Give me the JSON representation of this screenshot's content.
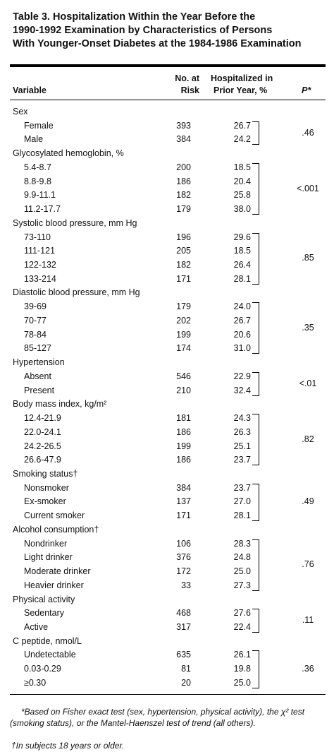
{
  "title_lines": [
    "Table 3. Hospitalization Within the Year Before the",
    "1990-1992 Examination by Characteristics of Persons",
    "With Younger-Onset Diabetes at the 1984-1986 Examination"
  ],
  "table": {
    "headers": {
      "variable": "Variable",
      "n": [
        "No. at",
        "Risk"
      ],
      "pct": [
        "Hospitalized in",
        "Prior Year, %"
      ],
      "p": "P*"
    },
    "groups": [
      {
        "label": "Sex",
        "p": ".46",
        "rows": [
          {
            "label": "Female",
            "n": "393",
            "pct": "26.7"
          },
          {
            "label": "Male",
            "n": "384",
            "pct": "24.2"
          }
        ]
      },
      {
        "label": "Glycosylated hemoglobin, %",
        "p": "<.001",
        "rows": [
          {
            "label": "5.4-8.7",
            "n": "200",
            "pct": "18.5"
          },
          {
            "label": "8.8-9.8",
            "n": "186",
            "pct": "20.4"
          },
          {
            "label": "9.9-11.1",
            "n": "182",
            "pct": "25.8"
          },
          {
            "label": "11.2-17.7",
            "n": "179",
            "pct": "38.0"
          }
        ]
      },
      {
        "label": "Systolic blood pressure, mm Hg",
        "p": ".85",
        "rows": [
          {
            "label": "73-110",
            "n": "196",
            "pct": "29.6"
          },
          {
            "label": "111-121",
            "n": "205",
            "pct": "18.5"
          },
          {
            "label": "122-132",
            "n": "182",
            "pct": "26.4"
          },
          {
            "label": "133-214",
            "n": "171",
            "pct": "28.1"
          }
        ]
      },
      {
        "label": "Diastolic blood pressure, mm Hg",
        "p": ".35",
        "rows": [
          {
            "label": "39-69",
            "n": "179",
            "pct": "24.0"
          },
          {
            "label": "70-77",
            "n": "202",
            "pct": "26.7"
          },
          {
            "label": "78-84",
            "n": "199",
            "pct": "20.6"
          },
          {
            "label": "85-127",
            "n": "174",
            "pct": "31.0"
          }
        ]
      },
      {
        "label": "Hypertension",
        "p": "<.01",
        "rows": [
          {
            "label": "Absent",
            "n": "546",
            "pct": "22.9"
          },
          {
            "label": "Present",
            "n": "210",
            "pct": "32.4"
          }
        ]
      },
      {
        "label": "Body mass index, kg/m²",
        "p": ".82",
        "rows": [
          {
            "label": "12.4-21.9",
            "n": "181",
            "pct": "24.3"
          },
          {
            "label": "22.0-24.1",
            "n": "186",
            "pct": "26.3"
          },
          {
            "label": "24.2-26.5",
            "n": "199",
            "pct": "25.1"
          },
          {
            "label": "26.6-47.9",
            "n": "186",
            "pct": "23.7"
          }
        ]
      },
      {
        "label": "Smoking status†",
        "p": ".49",
        "rows": [
          {
            "label": "Nonsmoker",
            "n": "384",
            "pct": "23.7"
          },
          {
            "label": "Ex-smoker",
            "n": "137",
            "pct": "27.0"
          },
          {
            "label": "Current smoker",
            "n": "171",
            "pct": "28.1"
          }
        ]
      },
      {
        "label": "Alcohol consumption†",
        "p": ".76",
        "rows": [
          {
            "label": "Nondrinker",
            "n": "106",
            "pct": "28.3"
          },
          {
            "label": "Light drinker",
            "n": "376",
            "pct": "24.8"
          },
          {
            "label": "Moderate drinker",
            "n": "172",
            "pct": "25.0"
          },
          {
            "label": "Heavier drinker",
            "n": "33",
            "pct": "27.3"
          }
        ]
      },
      {
        "label": "Physical activity",
        "p": ".11",
        "rows": [
          {
            "label": "Sedentary",
            "n": "468",
            "pct": "27.6"
          },
          {
            "label": "Active",
            "n": "317",
            "pct": "22.4"
          }
        ]
      },
      {
        "label": "C peptide, nmol/L",
        "p": ".36",
        "rows": [
          {
            "label": "Undetectable",
            "n": "635",
            "pct": "26.1"
          },
          {
            "label": "0.03-0.29",
            "n": "81",
            "pct": "19.8"
          },
          {
            "label": "≥0.30",
            "n": "20",
            "pct": "25.0"
          }
        ]
      }
    ]
  },
  "footnotes": [
    "*Based on Fisher exact test (sex, hypertension, physical activity), the χ² test (smoking status), or the Mantel-Haenszel test of trend (all others).",
    "†In subjects 18 years or older."
  ]
}
